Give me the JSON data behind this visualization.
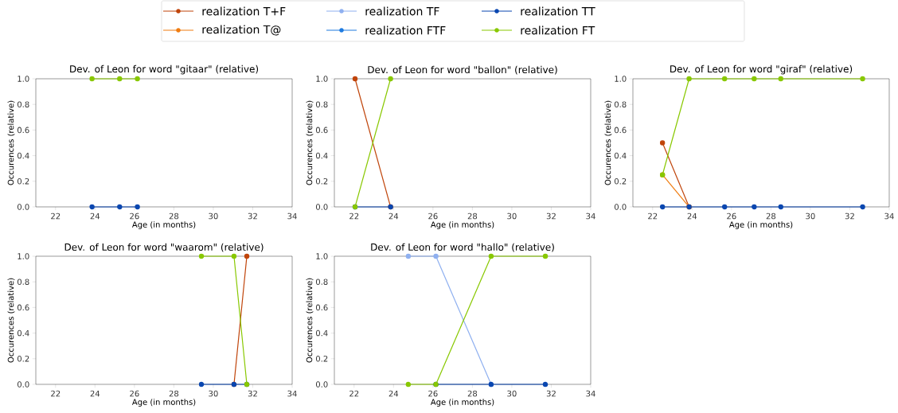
{
  "chart_data": [
    {
      "type": "line",
      "title": "Dev. of Leon for word \"gitaar\" (relative)",
      "xlabel": "Age (in months)",
      "ylabel": "Occurences (relative)",
      "legend": "top",
      "marker": "circle",
      "line_style": "solid",
      "xlim": [
        21,
        34
      ],
      "xticks": [
        22,
        24,
        26,
        28,
        30,
        32,
        34
      ],
      "ylim": [
        0,
        1
      ],
      "yticks": [
        {
          "value": 0,
          "label": "0.0"
        },
        {
          "value": 0.2,
          "label": "0.2"
        },
        {
          "value": 0.4,
          "label": "0.4"
        },
        {
          "value": 0.6,
          "label": "0.6"
        },
        {
          "value": 0.8,
          "label": "0.8"
        },
        {
          "value": 1,
          "label": "1.0"
        }
      ],
      "x": [
        23.85,
        25.25,
        26.15
      ],
      "series": [
        {
          "name": "realization T+F",
          "color": "#c0440a",
          "values": [
            null,
            null,
            null
          ]
        },
        {
          "name": "realization T@",
          "color": "#f07c10",
          "values": [
            null,
            null,
            null
          ]
        },
        {
          "name": "realization TF",
          "color": "#8fb0f0",
          "values": [
            null,
            null,
            null
          ]
        },
        {
          "name": "realization FTF",
          "color": "#1f7be0",
          "values": [
            null,
            null,
            null
          ]
        },
        {
          "name": "realization TT",
          "color": "#0a47b0",
          "values": [
            0,
            0,
            0
          ]
        },
        {
          "name": "realization FT",
          "color": "#88c800",
          "values": [
            1,
            1,
            1
          ]
        }
      ]
    },
    {
      "type": "line",
      "title": "Dev. of Leon for word \"ballon\" (relative)",
      "xlabel": "Age (in months)",
      "ylabel": "Occurences (relative)",
      "marker": "circle",
      "line_style": "solid",
      "xlim": [
        21,
        34
      ],
      "xticks": [
        22,
        24,
        26,
        28,
        30,
        32,
        34
      ],
      "ylim": [
        0,
        1
      ],
      "yticks": [
        {
          "value": 0,
          "label": "0.0"
        },
        {
          "value": 0.2,
          "label": "0.2"
        },
        {
          "value": 0.4,
          "label": "0.4"
        },
        {
          "value": 0.6,
          "label": "0.6"
        },
        {
          "value": 0.8,
          "label": "0.8"
        },
        {
          "value": 1,
          "label": "1.0"
        }
      ],
      "x": [
        22.05,
        23.85
      ],
      "series": [
        {
          "color": "#c0440a",
          "values": [
            1,
            0
          ]
        },
        {
          "color": "#0a47b0",
          "values": [
            0,
            0
          ]
        },
        {
          "color": "#88c800",
          "values": [
            0,
            1
          ]
        }
      ]
    },
    {
      "type": "line",
      "title": "Dev. of Leon for word \"giraf\" (relative)",
      "xlabel": "Age (in months)",
      "ylabel": "Occurences (relative)",
      "marker": "circle",
      "line_style": "solid",
      "xlim": [
        21,
        34
      ],
      "xticks": [
        22,
        24,
        26,
        28,
        30,
        32,
        34
      ],
      "ylim": [
        0,
        1
      ],
      "yticks": [
        {
          "value": 0,
          "label": "0.0"
        },
        {
          "value": 0.2,
          "label": "0.2"
        },
        {
          "value": 0.4,
          "label": "0.4"
        },
        {
          "value": 0.6,
          "label": "0.6"
        },
        {
          "value": 0.8,
          "label": "0.8"
        },
        {
          "value": 1,
          "label": "1.0"
        }
      ],
      "x": [
        22.5,
        23.85,
        25.65,
        27.15,
        28.5,
        32.65
      ],
      "series": [
        {
          "color": "#c0440a",
          "values": [
            0.5,
            0,
            null,
            null,
            null,
            null
          ]
        },
        {
          "color": "#f07c10",
          "values": [
            0.25,
            0,
            null,
            null,
            null,
            null
          ]
        },
        {
          "color": "#0a47b0",
          "values": [
            0,
            0,
            0,
            0,
            0,
            0
          ]
        },
        {
          "color": "#88c800",
          "values": [
            0.25,
            1,
            1,
            1,
            1,
            1
          ]
        }
      ]
    },
    {
      "type": "line",
      "title": "Dev. of Leon for word \"waarom\" (relative)",
      "xlabel": "Age (in months)",
      "ylabel": "Occurences (relative)",
      "marker": "circle",
      "line_style": "solid",
      "xlim": [
        21,
        34
      ],
      "xticks": [
        22,
        24,
        26,
        28,
        30,
        32,
        34
      ],
      "ylim": [
        0,
        1
      ],
      "yticks": [
        {
          "value": 0,
          "label": "0.0"
        },
        {
          "value": 0.2,
          "label": "0.2"
        },
        {
          "value": 0.4,
          "label": "0.4"
        },
        {
          "value": 0.6,
          "label": "0.6"
        },
        {
          "value": 0.8,
          "label": "0.8"
        },
        {
          "value": 1,
          "label": "1.0"
        }
      ],
      "x": [
        29.4,
        31.05,
        31.7
      ],
      "series": [
        {
          "color": "#c0440a",
          "values": [
            null,
            0,
            1
          ]
        },
        {
          "color": "#0a47b0",
          "values": [
            0,
            0,
            0
          ]
        },
        {
          "color": "#88c800",
          "values": [
            1,
            1,
            0
          ]
        }
      ]
    },
    {
      "type": "line",
      "title": "Dev. of Leon for word \"hallo\" (relative)",
      "xlabel": "Age (in months)",
      "ylabel": "Occurences (relative)",
      "marker": "circle",
      "line_style": "solid",
      "xlim": [
        21,
        34
      ],
      "xticks": [
        22,
        24,
        26,
        28,
        30,
        32,
        34
      ],
      "ylim": [
        0,
        1
      ],
      "yticks": [
        {
          "value": 0,
          "label": "0.0"
        },
        {
          "value": 0.2,
          "label": "0.2"
        },
        {
          "value": 0.4,
          "label": "0.4"
        },
        {
          "value": 0.6,
          "label": "0.6"
        },
        {
          "value": 0.8,
          "label": "0.8"
        },
        {
          "value": 1,
          "label": "1.0"
        }
      ],
      "x": [
        24.75,
        26.15,
        28.95,
        31.7
      ],
      "series": [
        {
          "color": "#8fb0f0",
          "values": [
            1,
            1,
            0,
            null
          ]
        },
        {
          "color": "#0a47b0",
          "values": [
            null,
            0,
            0,
            0
          ]
        },
        {
          "color": "#88c800",
          "values": [
            0,
            0,
            1,
            1
          ]
        }
      ]
    }
  ]
}
